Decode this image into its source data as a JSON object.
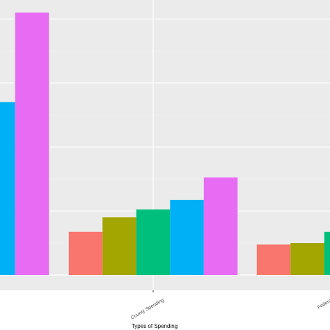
{
  "chart_data": {
    "type": "bar",
    "xlabel": "Types of Spending",
    "ylabel": "",
    "categories": [
      "",
      "County Spending",
      "Federal"
    ],
    "ylim": [
      0,
      8.2
    ],
    "grid": true,
    "legend": "none",
    "series_colors": [
      "#F8766D",
      "#A3A500",
      "#00BF7D",
      "#00B0F6",
      "#E76BF3"
    ],
    "series": [
      {
        "values": [
          null,
          1.35,
          0.95
        ]
      },
      {
        "values": [
          null,
          1.8,
          1.0
        ]
      },
      {
        "values": [
          null,
          2.05,
          1.35
        ]
      },
      {
        "values": [
          5.4,
          2.35,
          null
        ]
      },
      {
        "values": [
          8.2,
          3.05,
          null
        ]
      }
    ]
  }
}
